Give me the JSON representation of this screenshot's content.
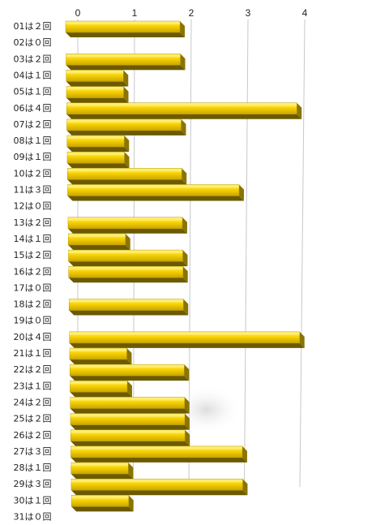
{
  "chart_data": {
    "type": "bar",
    "orientation": "horizontal",
    "style": "3d",
    "title": "",
    "xlabel": "",
    "ylabel": "",
    "xlim": [
      0,
      4.4
    ],
    "ticks": [
      "0",
      "1",
      "2",
      "3",
      "4"
    ],
    "grid": true,
    "legend": "none",
    "colors": {
      "bar_face": "#f7d200",
      "bar_top": "#fff07a",
      "bar_side": "#6b5a00",
      "grid": "#c8c8c8"
    },
    "categories": [
      "01は２回",
      "02は０回",
      "03は２回",
      "04は１回",
      "05は１回",
      "06は４回",
      "07は２回",
      "08は１回",
      "09は１回",
      "10は２回",
      "11は３回",
      "12は０回",
      "13は２回",
      "14は１回",
      "15は２回",
      "16は２回",
      "17は０回",
      "18は２回",
      "19は０回",
      "20は４回",
      "21は１回",
      "22は２回",
      "23は１回",
      "24は２回",
      "25は２回",
      "26は２回",
      "27は３回",
      "28は１回",
      "29は３回",
      "30は１回",
      "31は０回"
    ],
    "values": [
      2,
      0,
      2,
      1,
      1,
      4,
      2,
      1,
      1,
      2,
      3,
      0,
      2,
      1,
      2,
      2,
      0,
      2,
      0,
      4,
      1,
      2,
      1,
      2,
      2,
      2,
      3,
      1,
      3,
      1,
      0
    ]
  }
}
